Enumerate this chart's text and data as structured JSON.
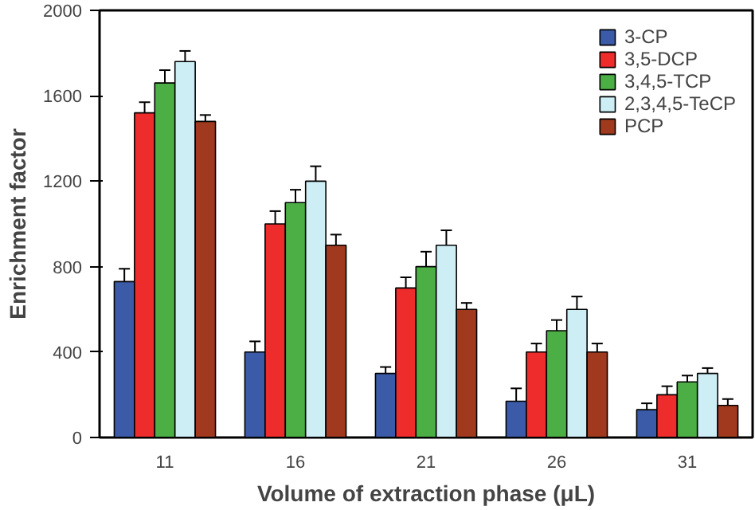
{
  "chart_data": {
    "type": "bar",
    "xlabel": "Volume of extraction phase (μL)",
    "ylabel": "Enrichment factor",
    "categories": [
      "11",
      "16",
      "21",
      "26",
      "31"
    ],
    "series": [
      {
        "name": "3-CP",
        "color": "#3b5ba8",
        "values": [
          730,
          400,
          300,
          170,
          130
        ],
        "errors": [
          60,
          50,
          30,
          60,
          30
        ]
      },
      {
        "name": "3,5-DCP",
        "color": "#ee2c2c",
        "values": [
          1520,
          1000,
          700,
          400,
          200
        ],
        "errors": [
          50,
          60,
          50,
          40,
          40
        ]
      },
      {
        "name": "3,4,5-TCP",
        "color": "#4caf45",
        "values": [
          1660,
          1100,
          800,
          500,
          260
        ],
        "errors": [
          60,
          60,
          70,
          50,
          30
        ]
      },
      {
        "name": "2,3,4,5-TeCP",
        "color": "#cdeef5",
        "values": [
          1760,
          1200,
          900,
          600,
          300
        ],
        "errors": [
          50,
          70,
          70,
          60,
          25
        ]
      },
      {
        "name": "PCP",
        "color": "#a0391e",
        "values": [
          1480,
          900,
          600,
          400,
          150
        ],
        "errors": [
          30,
          50,
          30,
          40,
          30
        ]
      }
    ],
    "ylim": [
      0,
      2000
    ],
    "yticks": [
      0,
      400,
      800,
      1200,
      1600,
      2000
    ],
    "legend": "top right",
    "grid": false
  }
}
